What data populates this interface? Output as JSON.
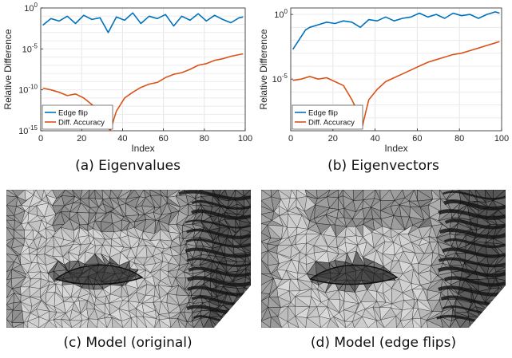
{
  "figure": {
    "captions": {
      "a": "(a) Eigenvalues",
      "b": "(b) Eigenvectors",
      "c": "(c) Model (original)",
      "d": "(d) Model (edge flips)"
    }
  },
  "chart_data": [
    {
      "type": "line",
      "title": "",
      "xlabel": "Index",
      "ylabel": "Relative Difference",
      "xlim": [
        0,
        100
      ],
      "ylim_log10": [
        -15,
        0
      ],
      "yscale": "log",
      "xticks": [
        "0",
        "20",
        "40",
        "60",
        "80",
        "100"
      ],
      "yticks": [
        {
          "label": "10",
          "exp": "0",
          "log10": 0
        },
        {
          "label": "10",
          "exp": "-5",
          "log10": -5
        },
        {
          "label": "10",
          "exp": "-10",
          "log10": -10
        },
        {
          "label": "10",
          "exp": "-15",
          "log10": -15
        }
      ],
      "grid": true,
      "legend_position": "bottom-left",
      "series": [
        {
          "name": "Edge flip",
          "color": "#0072BD",
          "x": [
            1,
            5,
            9,
            13,
            17,
            21,
            25,
            29,
            33,
            37,
            41,
            45,
            49,
            53,
            57,
            61,
            65,
            69,
            73,
            77,
            81,
            85,
            89,
            93,
            97,
            99
          ],
          "log10_y": [
            -2.1,
            -1.3,
            -1.6,
            -1.0,
            -1.9,
            -0.9,
            -1.4,
            -1.2,
            -3.0,
            -1.1,
            -1.5,
            -0.6,
            -1.9,
            -1.0,
            -1.3,
            -0.8,
            -2.2,
            -1.0,
            -1.5,
            -0.7,
            -1.6,
            -0.9,
            -1.4,
            -1.8,
            -1.2,
            -1.1
          ]
        },
        {
          "name": "Diff. Accuracy",
          "color": "#D95319",
          "x": [
            1,
            5,
            9,
            13,
            17,
            21,
            25,
            29,
            33,
            34,
            37,
            41,
            45,
            49,
            53,
            57,
            61,
            65,
            69,
            73,
            77,
            81,
            85,
            89,
            93,
            97,
            99
          ],
          "log10_y": [
            -9.8,
            -10.0,
            -10.3,
            -10.7,
            -10.5,
            -11.0,
            -11.8,
            -12.8,
            -14.6,
            -15.0,
            -12.6,
            -11.0,
            -10.3,
            -9.7,
            -9.3,
            -9.1,
            -8.5,
            -8.1,
            -7.9,
            -7.5,
            -7.0,
            -6.8,
            -6.4,
            -6.2,
            -5.9,
            -5.7,
            -5.6
          ]
        }
      ]
    },
    {
      "type": "line",
      "title": "",
      "xlabel": "Index",
      "ylabel": "Relative Difference",
      "xlim": [
        0,
        100
      ],
      "ylim_log10": [
        -9,
        0.5
      ],
      "yscale": "log",
      "xticks": [
        "0",
        "20",
        "40",
        "60",
        "80",
        "100"
      ],
      "yticks": [
        {
          "label": "10",
          "exp": "0",
          "log10": 0
        },
        {
          "label": "10",
          "exp": "-5",
          "log10": -5
        }
      ],
      "grid": true,
      "legend_position": "bottom-left",
      "series": [
        {
          "name": "Edge flip",
          "color": "#0072BD",
          "x": [
            1,
            3,
            5,
            7,
            9,
            13,
            17,
            21,
            25,
            29,
            33,
            37,
            41,
            45,
            49,
            53,
            57,
            61,
            65,
            69,
            73,
            77,
            81,
            85,
            89,
            93,
            97,
            99
          ],
          "log10_y": [
            -2.7,
            -2.2,
            -1.7,
            -1.2,
            -1.0,
            -0.8,
            -0.6,
            -0.7,
            -0.5,
            -0.6,
            -1.0,
            -0.4,
            -0.5,
            -0.2,
            -0.5,
            -0.3,
            -0.2,
            0.1,
            -0.2,
            0.0,
            -0.3,
            0.1,
            -0.1,
            0.0,
            -0.3,
            0.0,
            0.2,
            0.1
          ]
        },
        {
          "name": "Diff. Accuracy",
          "color": "#D95319",
          "x": [
            1,
            5,
            9,
            13,
            17,
            21,
            25,
            29,
            33,
            34,
            37,
            41,
            45,
            49,
            53,
            57,
            61,
            65,
            69,
            73,
            77,
            81,
            85,
            89,
            93,
            97,
            99
          ],
          "log10_y": [
            -5.1,
            -5.0,
            -4.8,
            -5.0,
            -4.9,
            -5.2,
            -5.5,
            -6.6,
            -8.0,
            -8.6,
            -6.6,
            -5.8,
            -5.2,
            -4.9,
            -4.6,
            -4.3,
            -4.0,
            -3.7,
            -3.5,
            -3.3,
            -3.1,
            -3.0,
            -2.8,
            -2.6,
            -2.4,
            -2.2,
            -2.1
          ]
        }
      ]
    }
  ]
}
